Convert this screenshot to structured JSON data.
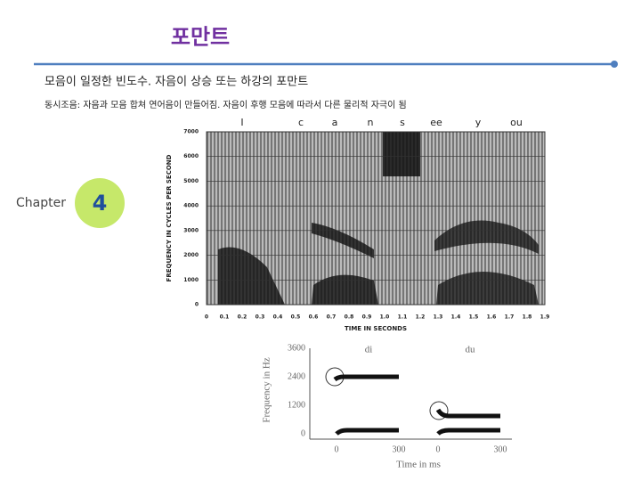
{
  "title": "포만트",
  "subtitle": "모음이 일정한 빈도수. 자음이 상승 또는 하강의 포만트",
  "note": "동시조음: 자음과 모음 합쳐 연어음이 만들어짐. 자음이 후행 모음에 따라서 다른 물리적 자극이 됨",
  "chapter": {
    "label": "Chapter",
    "number": "4"
  },
  "spectrogram": {
    "y_label": "FREQUENCY IN CYCLES PER SECOND",
    "y_ticks": [
      "7000",
      "6000",
      "5000",
      "4000",
      "3000",
      "2000",
      "1000",
      "0"
    ],
    "x_ticks": [
      "0",
      "0.1",
      "0.2",
      "0.3",
      "0.4",
      "0.5",
      "0.6",
      "0.7",
      "0.8",
      "0.9",
      "1.0",
      "1.1",
      "1.2",
      "1.3",
      "1.4",
      "1.5",
      "1.6",
      "1.7",
      "1.8",
      "1.9"
    ],
    "x_label": "TIME IN SECONDS",
    "segments": [
      "I",
      "c",
      "a",
      "n",
      "s",
      "ee",
      "y",
      "ou"
    ]
  },
  "formant_chart": {
    "y_label": "Frequency in Hz",
    "y_ticks": [
      "3600",
      "2400",
      "1200",
      "0"
    ],
    "x_ticks": [
      "0",
      "300",
      "0",
      "300"
    ],
    "x_label": "Time in ms",
    "panels": [
      "di",
      "du"
    ]
  }
}
